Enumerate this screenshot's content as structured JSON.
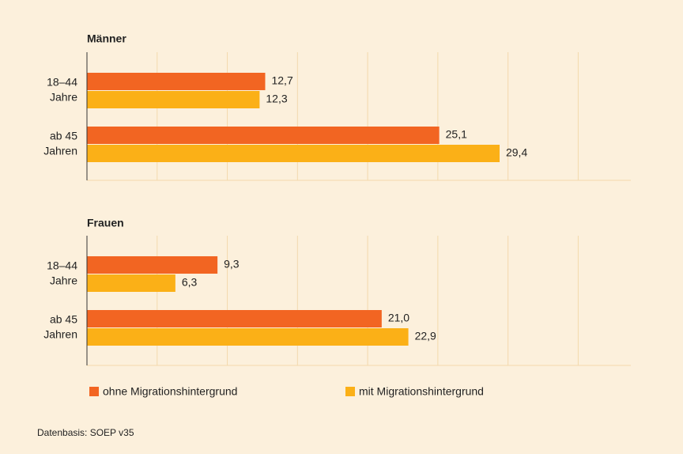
{
  "chart_data": [
    {
      "type": "barh",
      "title": "Männer",
      "categories": [
        [
          "18–44",
          "Jahre"
        ],
        [
          "ab 45",
          "Jahren"
        ]
      ],
      "series": [
        {
          "name": "ohne Migrationshintergrund",
          "color": "#f26522",
          "values": [
            12.7,
            25.1
          ],
          "value_labels": [
            "12,7",
            "25,1"
          ]
        },
        {
          "name": "mit Migrationshintergrund",
          "color": "#fbb017",
          "values": [
            12.3,
            29.4
          ],
          "value_labels": [
            "12,3",
            "29,4"
          ]
        }
      ],
      "xlim": [
        0,
        38.75
      ],
      "xticks": [
        0,
        5,
        10,
        15,
        20,
        25,
        30,
        35
      ],
      "grid": true
    },
    {
      "type": "barh",
      "title": "Frauen",
      "categories": [
        [
          "18–44",
          "Jahre"
        ],
        [
          "ab 45",
          "Jahren"
        ]
      ],
      "series": [
        {
          "name": "ohne Migrationshintergrund",
          "color": "#f26522",
          "values": [
            9.3,
            21.0
          ],
          "value_labels": [
            "9,3",
            "21,0"
          ]
        },
        {
          "name": "mit Migrationshintergrund",
          "color": "#fbb017",
          "values": [
            6.3,
            22.9
          ],
          "value_labels": [
            "6,3",
            "22,9"
          ]
        }
      ],
      "xlim": [
        0,
        38.75
      ],
      "xticks": [
        0,
        5,
        10,
        15,
        20,
        25,
        30,
        35
      ],
      "grid": true
    }
  ],
  "source": "Datenbasis: SOEP v35"
}
